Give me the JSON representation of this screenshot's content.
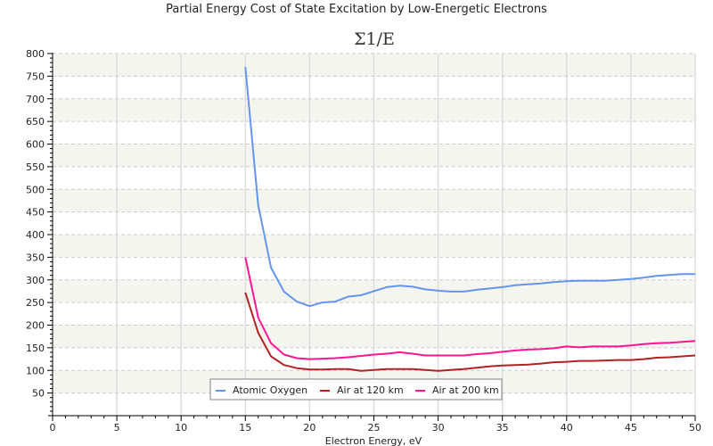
{
  "chart_data": {
    "type": "line",
    "title": "Partial Energy Cost of State Excitation by Low-Energetic Electrons",
    "subtitle": "Σ1/E",
    "xlabel": "Electron Energy, eV",
    "ylabel": "",
    "xlim": [
      0,
      50
    ],
    "ylim": [
      0,
      800
    ],
    "x_major_step": 5,
    "x_minor_step": 1,
    "y_major_step": 50,
    "y_minor_step": 10,
    "x_ticks": [
      "0",
      "5",
      "10",
      "15",
      "20",
      "25",
      "30",
      "35",
      "40",
      "45",
      "50"
    ],
    "y_ticks": [
      "50",
      "100",
      "150",
      "200",
      "250",
      "300",
      "350",
      "400",
      "450",
      "500",
      "550",
      "600",
      "650",
      "700",
      "750",
      "800"
    ],
    "grid": true,
    "legend_position": "bottom-center",
    "x": [
      15,
      16,
      17,
      18,
      19,
      20,
      21,
      22,
      23,
      24,
      25,
      26,
      27,
      28,
      29,
      30,
      31,
      32,
      33,
      34,
      35,
      36,
      37,
      38,
      39,
      40,
      41,
      42,
      43,
      44,
      45,
      46,
      47,
      48,
      49,
      50
    ],
    "series": [
      {
        "name": "Atomic Oxygen",
        "color": "#6495ed",
        "values": [
          770,
          465,
          327,
          274,
          252,
          242,
          250,
          252,
          263,
          266,
          275,
          284,
          287,
          285,
          279,
          276,
          274,
          274,
          278,
          281,
          284,
          288,
          290,
          292,
          295,
          297,
          298,
          298,
          298,
          300,
          302,
          305,
          309,
          311,
          313,
          313
        ]
      },
      {
        "name": "Air at 120 km",
        "color": "#b22222",
        "values": [
          272,
          183,
          131,
          112,
          105,
          102,
          102,
          103,
          103,
          99,
          101,
          103,
          103,
          103,
          101,
          99,
          101,
          103,
          106,
          109,
          111,
          112,
          113,
          115,
          118,
          119,
          121,
          121,
          122,
          123,
          123,
          125,
          128,
          129,
          131,
          133
        ]
      },
      {
        "name": "Air at 200 km",
        "color": "#ff1493",
        "values": [
          350,
          217,
          160,
          135,
          127,
          125,
          126,
          127,
          129,
          132,
          135,
          137,
          140,
          137,
          133,
          133,
          133,
          133,
          136,
          138,
          141,
          144,
          146,
          147,
          149,
          153,
          151,
          153,
          153,
          153,
          155,
          158,
          160,
          161,
          163,
          165
        ]
      }
    ]
  },
  "colors": {
    "band": "#f5f5f0",
    "grid": "#cccccc",
    "vgrid": "#dddddd",
    "axis": "#000000",
    "legend_border": "#808080"
  }
}
